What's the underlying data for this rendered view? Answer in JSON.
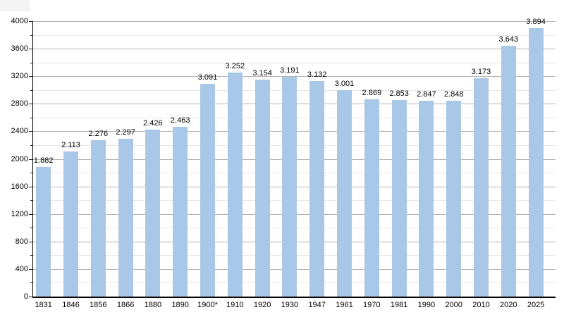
{
  "chart_data": {
    "type": "bar",
    "categories": [
      "1831",
      "1846",
      "1856",
      "1866",
      "1880",
      "1890",
      "1900*",
      "1910",
      "1920",
      "1930",
      "1947",
      "1961",
      "1970",
      "1981",
      "1990",
      "2000",
      "2010",
      "2020",
      "2025"
    ],
    "values": [
      1882,
      2113,
      2276,
      2297,
      2426,
      2463,
      3091,
      3252,
      3154,
      3191,
      3132,
      3001,
      2869,
      2853,
      2847,
      2848,
      3173,
      3643,
      3894
    ],
    "value_labels": [
      "1.882",
      "2.113",
      "2.276",
      "2.297",
      "2.426",
      "2.463",
      "3.091",
      "3.252",
      "3.154",
      "3.191",
      "3.132",
      "3.001",
      "2.869",
      "2.853",
      "2.847",
      "2.848",
      "3.173",
      "3.643",
      "3.894"
    ],
    "title": "",
    "xlabel": "",
    "ylabel": "",
    "ylim": [
      0,
      4000
    ],
    "y_major_step": 400,
    "y_minor_step": 200,
    "y_tick_labels": [
      "0",
      "400",
      "800",
      "1200",
      "1600",
      "2000",
      "2400",
      "2800",
      "3200",
      "3600",
      "4000"
    ],
    "grid": "on",
    "legend": "none",
    "colors": {
      "bar_fill": "#a9c7e6",
      "grid_major": "#b3b3b3",
      "grid_minor": "#e6e6e6",
      "axis": "#000000",
      "text": "#000000",
      "background": "#ffffff"
    }
  }
}
